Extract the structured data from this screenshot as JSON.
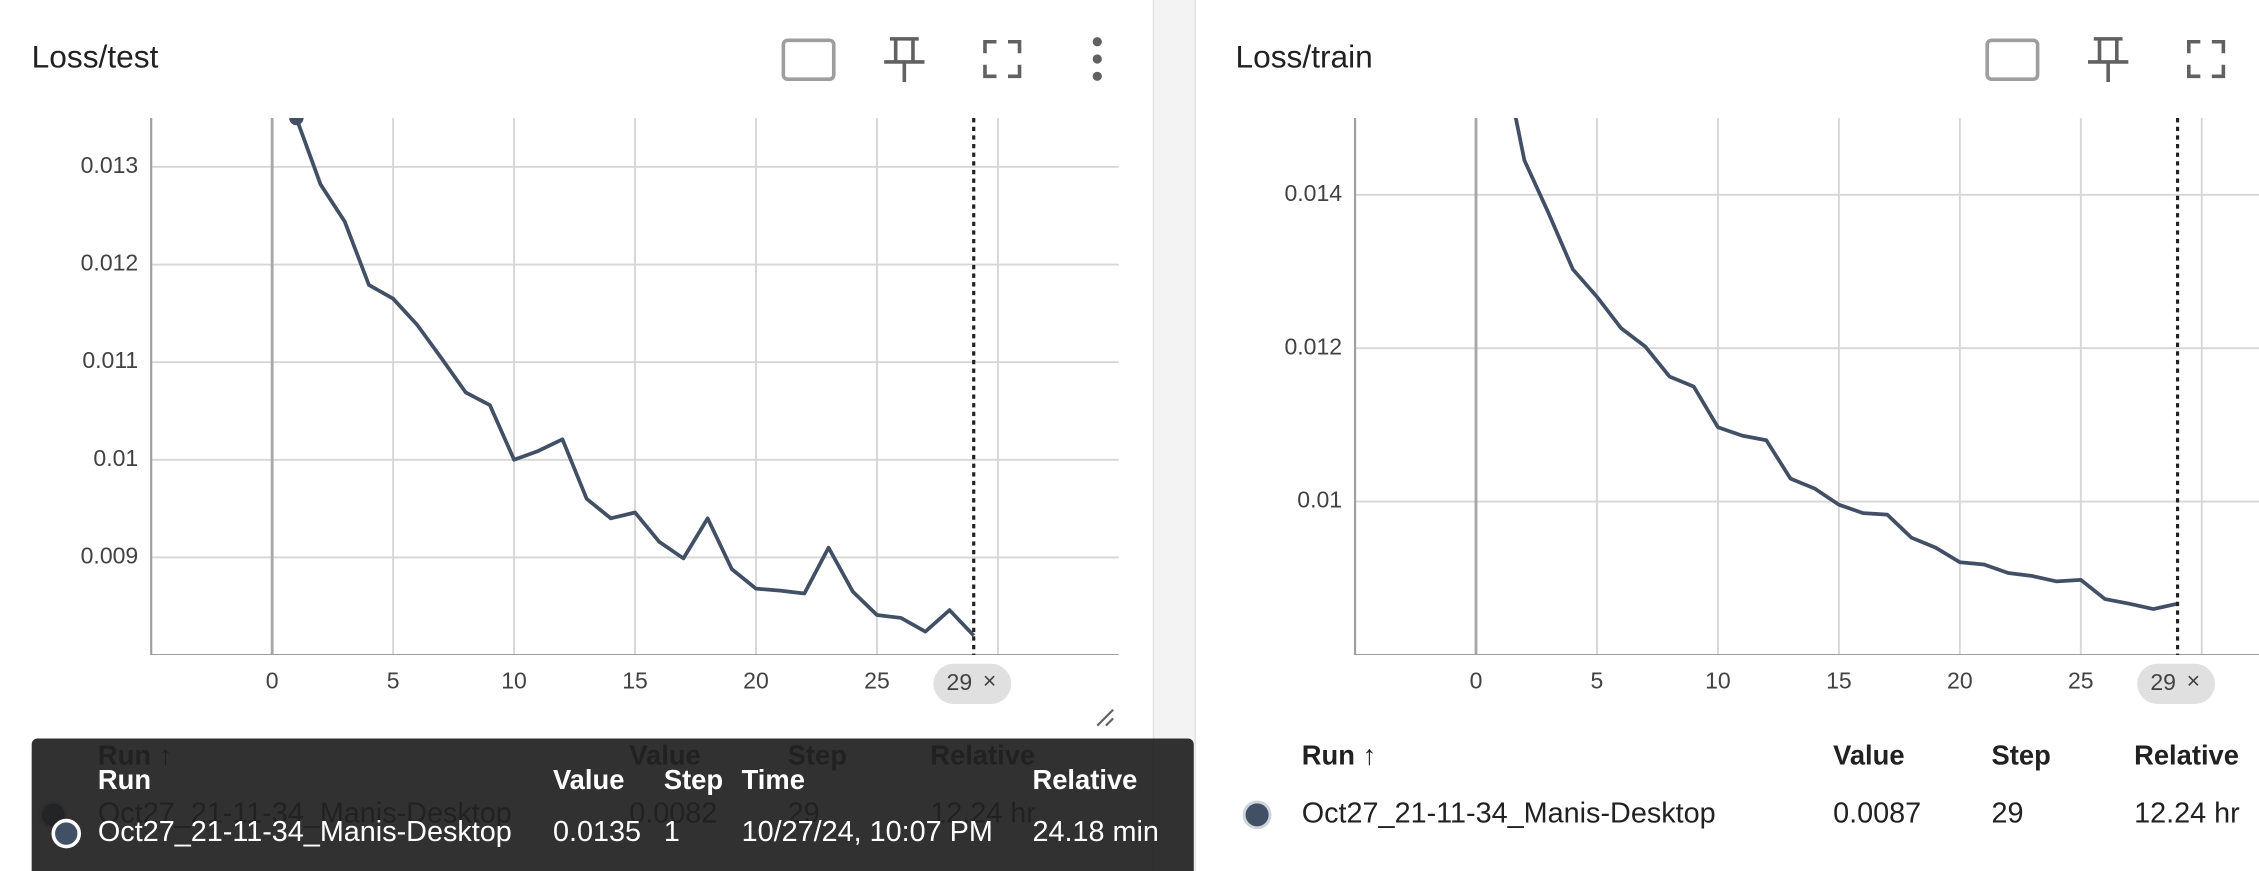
{
  "panels": [
    {
      "title": "Loss/test",
      "chart": {
        "type": "line",
        "color": "#425066",
        "x": [
          1,
          2,
          3,
          4,
          5,
          6,
          7,
          8,
          9,
          10,
          11,
          12,
          13,
          14,
          15,
          16,
          17,
          18,
          19,
          20,
          21,
          22,
          23,
          24,
          25,
          26,
          27,
          28,
          29
        ],
        "values": [
          0.0135,
          0.01282,
          0.01244,
          0.01179,
          0.01165,
          0.01138,
          0.01104,
          0.01069,
          0.01056,
          0.01,
          0.01009,
          0.01021,
          0.0096,
          0.0094,
          0.00946,
          0.00916,
          0.00899,
          0.0094,
          0.00888,
          0.00868,
          0.00866,
          0.00863,
          0.0091,
          0.00865,
          0.00841,
          0.00838,
          0.00824,
          0.00846,
          0.0082
        ],
        "xlim": [
          -5,
          35
        ],
        "ylim": [
          0.008,
          0.0135
        ],
        "xticks": [
          0,
          5,
          10,
          15,
          20,
          25,
          30
        ],
        "yticks": [
          0.009,
          0.01,
          0.011,
          0.012,
          0.013
        ],
        "grid": true,
        "marker": 29,
        "marker_close": "×"
      },
      "table": {
        "columns": [
          "Run ↑",
          "Value",
          "Step",
          "Relative"
        ],
        "rows": [
          [
            "Oct27_21-11-34_Manis-Desktop",
            0.0082,
            29,
            "12.24 hr"
          ]
        ]
      }
    },
    {
      "title": "Loss/train",
      "chart": {
        "type": "line",
        "color": "#425066",
        "x": [
          1,
          2,
          3,
          4,
          5,
          6,
          7,
          8,
          9,
          10,
          11,
          12,
          13,
          14,
          15,
          16,
          17,
          18,
          19,
          20,
          21,
          22,
          23,
          24,
          25,
          26,
          27,
          28,
          29
        ],
        "values": [
          0.016,
          0.01445,
          0.01376,
          0.01303,
          0.01267,
          0.01226,
          0.01202,
          0.01163,
          0.0115,
          0.01097,
          0.01086,
          0.0108,
          0.0103,
          0.01017,
          0.00996,
          0.00985,
          0.00983,
          0.00953,
          0.0094,
          0.00921,
          0.00918,
          0.00907,
          0.00903,
          0.00896,
          0.00898,
          0.00873,
          0.00867,
          0.0086,
          0.00867
        ],
        "xlim": [
          -5,
          35
        ],
        "ylim": [
          0.008,
          0.015
        ],
        "xticks": [
          0,
          5,
          10,
          15,
          20,
          25,
          30
        ],
        "yticks": [
          0.01,
          0.012,
          0.014
        ],
        "grid": true,
        "marker": 29,
        "marker_close": "×"
      },
      "table": {
        "columns": [
          "Run ↑",
          "Value",
          "Step",
          "Relative"
        ],
        "rows": [
          [
            "Oct27_21-11-34_Manis-Desktop",
            0.0087,
            29,
            "12.24 hr"
          ]
        ]
      }
    }
  ],
  "tooltip": {
    "columns": [
      "Run",
      "Value",
      "Step",
      "Time",
      "Relative"
    ],
    "rows": [
      [
        "Oct27_21-11-34_Manis-Desktop",
        0.0135,
        1,
        "10/27/24, 10:07 PM",
        "24.18 min"
      ]
    ]
  }
}
